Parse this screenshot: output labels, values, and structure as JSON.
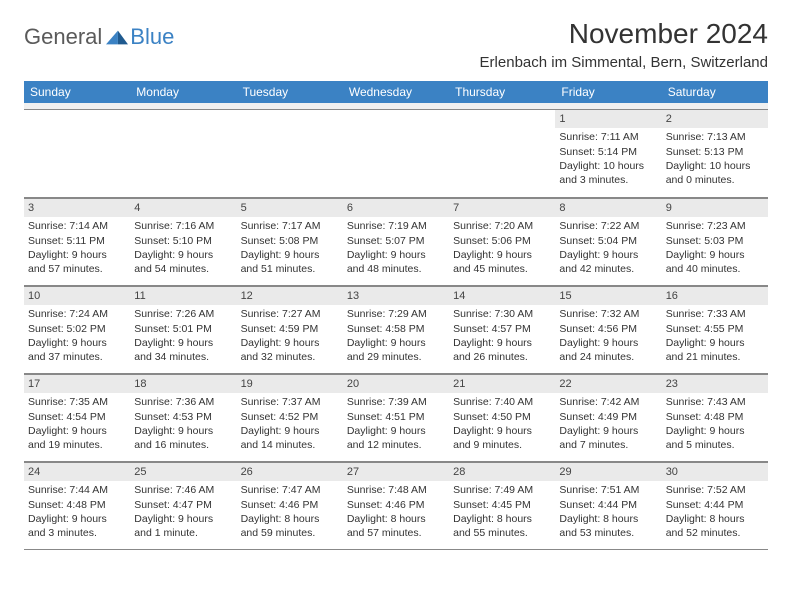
{
  "brand": {
    "text1": "General",
    "text2": "Blue"
  },
  "title": "November 2024",
  "location": "Erlenbach im Simmental, Bern, Switzerland",
  "colors": {
    "header_bg": "#3b82c4",
    "header_text": "#ffffff",
    "date_bar_bg": "#eaeaea",
    "border": "#888888",
    "text": "#333333",
    "logo_gray": "#5a5a5a",
    "logo_blue": "#3b82c4",
    "page_bg": "#ffffff"
  },
  "fonts": {
    "title_pt": 28,
    "location_pt": 15,
    "header_pt": 12,
    "cell_pt": 10.5,
    "logo_pt": 22
  },
  "dayNames": [
    "Sunday",
    "Monday",
    "Tuesday",
    "Wednesday",
    "Thursday",
    "Friday",
    "Saturday"
  ],
  "weeks": [
    [
      null,
      null,
      null,
      null,
      null,
      {
        "d": "1",
        "sr": "7:11 AM",
        "ss": "5:14 PM",
        "dl": "10 hours and 3 minutes."
      },
      {
        "d": "2",
        "sr": "7:13 AM",
        "ss": "5:13 PM",
        "dl": "10 hours and 0 minutes."
      }
    ],
    [
      {
        "d": "3",
        "sr": "7:14 AM",
        "ss": "5:11 PM",
        "dl": "9 hours and 57 minutes."
      },
      {
        "d": "4",
        "sr": "7:16 AM",
        "ss": "5:10 PM",
        "dl": "9 hours and 54 minutes."
      },
      {
        "d": "5",
        "sr": "7:17 AM",
        "ss": "5:08 PM",
        "dl": "9 hours and 51 minutes."
      },
      {
        "d": "6",
        "sr": "7:19 AM",
        "ss": "5:07 PM",
        "dl": "9 hours and 48 minutes."
      },
      {
        "d": "7",
        "sr": "7:20 AM",
        "ss": "5:06 PM",
        "dl": "9 hours and 45 minutes."
      },
      {
        "d": "8",
        "sr": "7:22 AM",
        "ss": "5:04 PM",
        "dl": "9 hours and 42 minutes."
      },
      {
        "d": "9",
        "sr": "7:23 AM",
        "ss": "5:03 PM",
        "dl": "9 hours and 40 minutes."
      }
    ],
    [
      {
        "d": "10",
        "sr": "7:24 AM",
        "ss": "5:02 PM",
        "dl": "9 hours and 37 minutes."
      },
      {
        "d": "11",
        "sr": "7:26 AM",
        "ss": "5:01 PM",
        "dl": "9 hours and 34 minutes."
      },
      {
        "d": "12",
        "sr": "7:27 AM",
        "ss": "4:59 PM",
        "dl": "9 hours and 32 minutes."
      },
      {
        "d": "13",
        "sr": "7:29 AM",
        "ss": "4:58 PM",
        "dl": "9 hours and 29 minutes."
      },
      {
        "d": "14",
        "sr": "7:30 AM",
        "ss": "4:57 PM",
        "dl": "9 hours and 26 minutes."
      },
      {
        "d": "15",
        "sr": "7:32 AM",
        "ss": "4:56 PM",
        "dl": "9 hours and 24 minutes."
      },
      {
        "d": "16",
        "sr": "7:33 AM",
        "ss": "4:55 PM",
        "dl": "9 hours and 21 minutes."
      }
    ],
    [
      {
        "d": "17",
        "sr": "7:35 AM",
        "ss": "4:54 PM",
        "dl": "9 hours and 19 minutes."
      },
      {
        "d": "18",
        "sr": "7:36 AM",
        "ss": "4:53 PM",
        "dl": "9 hours and 16 minutes."
      },
      {
        "d": "19",
        "sr": "7:37 AM",
        "ss": "4:52 PM",
        "dl": "9 hours and 14 minutes."
      },
      {
        "d": "20",
        "sr": "7:39 AM",
        "ss": "4:51 PM",
        "dl": "9 hours and 12 minutes."
      },
      {
        "d": "21",
        "sr": "7:40 AM",
        "ss": "4:50 PM",
        "dl": "9 hours and 9 minutes."
      },
      {
        "d": "22",
        "sr": "7:42 AM",
        "ss": "4:49 PM",
        "dl": "9 hours and 7 minutes."
      },
      {
        "d": "23",
        "sr": "7:43 AM",
        "ss": "4:48 PM",
        "dl": "9 hours and 5 minutes."
      }
    ],
    [
      {
        "d": "24",
        "sr": "7:44 AM",
        "ss": "4:48 PM",
        "dl": "9 hours and 3 minutes."
      },
      {
        "d": "25",
        "sr": "7:46 AM",
        "ss": "4:47 PM",
        "dl": "9 hours and 1 minute."
      },
      {
        "d": "26",
        "sr": "7:47 AM",
        "ss": "4:46 PM",
        "dl": "8 hours and 59 minutes."
      },
      {
        "d": "27",
        "sr": "7:48 AM",
        "ss": "4:46 PM",
        "dl": "8 hours and 57 minutes."
      },
      {
        "d": "28",
        "sr": "7:49 AM",
        "ss": "4:45 PM",
        "dl": "8 hours and 55 minutes."
      },
      {
        "d": "29",
        "sr": "7:51 AM",
        "ss": "4:44 PM",
        "dl": "8 hours and 53 minutes."
      },
      {
        "d": "30",
        "sr": "7:52 AM",
        "ss": "4:44 PM",
        "dl": "8 hours and 52 minutes."
      }
    ]
  ],
  "labels": {
    "sunrise": "Sunrise:",
    "sunset": "Sunset:",
    "daylight": "Daylight:"
  }
}
